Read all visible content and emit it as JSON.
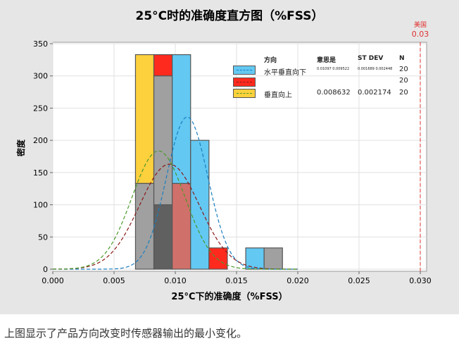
{
  "chart_data": {
    "type": "histogram",
    "title": "25°C时的准确度直方图（%FSS）",
    "xlabel": "25°C下的准确度（%FSS）",
    "ylabel": "密度",
    "xlim": [
      0,
      0.03
    ],
    "ylim": [
      0,
      350
    ],
    "xticks": [
      "0.000",
      "0.005",
      "0.010",
      "0.015",
      "0.020",
      "0.025",
      "0.030"
    ],
    "xtick_values": [
      0,
      0.005,
      0.01,
      0.015,
      0.02,
      0.025,
      0.03
    ],
    "yticks": [
      "0",
      "50",
      "100",
      "150",
      "200",
      "250",
      "300",
      "350"
    ],
    "ytick_values": [
      0,
      50,
      100,
      150,
      200,
      250,
      300,
      350
    ],
    "grid": true,
    "bin_start": 0.00675,
    "bin_width": 0.0015,
    "bar_segments": [
      {
        "bin": 0,
        "from": 133,
        "to": 333,
        "color": "#fdd03d"
      },
      {
        "bin": 0,
        "from": 0,
        "to": 133,
        "color": "#a0a0a0"
      },
      {
        "bin": 1,
        "from": 300,
        "to": 333,
        "color": "#ff2a1e"
      },
      {
        "bin": 1,
        "from": 100,
        "to": 300,
        "color": "#a0a0a0"
      },
      {
        "bin": 1,
        "from": 0,
        "to": 100,
        "color": "#606060"
      },
      {
        "bin": 2,
        "from": 133,
        "to": 333,
        "color": "#63c8f2"
      },
      {
        "bin": 2,
        "from": 0,
        "to": 133,
        "color": "#d0706a"
      },
      {
        "bin": 3,
        "from": 0,
        "to": 200,
        "color": "#63c8f2"
      },
      {
        "bin": 4,
        "from": 0,
        "to": 33,
        "color": "#ff2a1e"
      },
      {
        "bin": 6,
        "from": 0,
        "to": 33,
        "color": "#63c8f2"
      },
      {
        "bin": 7,
        "from": 0,
        "to": 33,
        "color": "#a0a0a0"
      }
    ],
    "series": [
      {
        "name": "水平垂直向下",
        "mean": 0.01097,
        "stdev": 0.001689,
        "n": "20",
        "fill": "#63c8f2",
        "line": "#1a7fc0"
      },
      {
        "name": "",
        "mean": 0.009522,
        "stdev": 0.002448,
        "n": "20",
        "fill": "#ff2a1e",
        "line": "#8b1a1a"
      },
      {
        "name": "垂直向上",
        "mean": 0.008632,
        "stdev": 0.002174,
        "n": "20",
        "fill": "#fdd03d",
        "line": "#4a9a2a"
      }
    ],
    "legend": {
      "header_dir": "方向",
      "header_mean": "意思是",
      "header_sd": "ST DEV",
      "header_n": "N",
      "row1_stats": "0.01097 0.009522",
      "row1_sd": "0.001689 0.002448",
      "row1_n": "20",
      "row2_n": "20",
      "row3_mean": "0.008632",
      "row3_sd": "0.002174",
      "row3_n": "20",
      "placement": "top-right"
    },
    "reference_line": {
      "x": 0.03,
      "label": "美国",
      "value_label": "0.03",
      "color": "#e03030"
    }
  },
  "caption": "上图显示了产品方向改变时传感器输出的最小变化。"
}
